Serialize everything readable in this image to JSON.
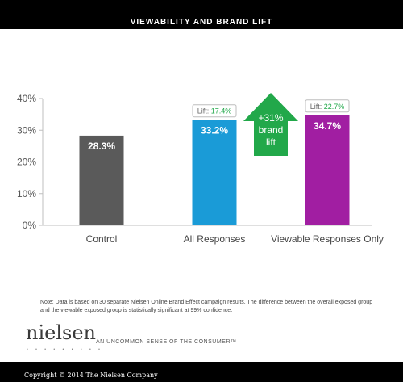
{
  "header": {
    "title": "VIEWABILITY AND BRAND LIFT"
  },
  "chart_data": {
    "type": "bar",
    "categories": [
      "Control",
      "All  Responses",
      "Viewable Responses Only"
    ],
    "values": [
      28.3,
      33.2,
      34.7
    ],
    "value_labels": [
      "28.3%",
      "33.2%",
      "34.7%"
    ],
    "colors": [
      "#5a5a5a",
      "#1a9bd7",
      "#a11ea2"
    ],
    "ylim": [
      0,
      40
    ],
    "y_ticks": [
      "0%",
      "10%",
      "20%",
      "30%",
      "40%"
    ],
    "grid": false,
    "lift_labels": [
      {
        "category_index": 1,
        "prefix": "Lift: ",
        "value": "17.4%"
      },
      {
        "category_index": 2,
        "prefix": "Lift: ",
        "value": "22.7%"
      }
    ],
    "arrow_annotation": {
      "lines": [
        "+31%",
        "brand",
        "lift"
      ],
      "color": "#22a84a"
    },
    "lift_value_color": "#22a84a"
  },
  "note": "Note: Data is based on 30 separate Nielsen Online Brand Effect campaign results. The difference between the overall exposed group and the viewable exposed group is statistically significant at 99% confidence.",
  "brand": {
    "logo": "nielsen",
    "tagline": "AN UNCOMMON SENSE OF THE CONSUMER™"
  },
  "footer": {
    "copyright": "Copyright © 2014 The Nielsen Company"
  }
}
